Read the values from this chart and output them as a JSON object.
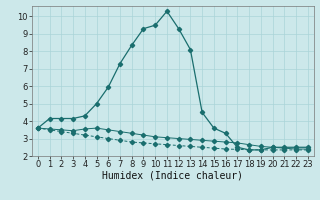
{
  "xlabel": "Humidex (Indice chaleur)",
  "ylabel": "",
  "background_color": "#cce8ea",
  "grid_color": "#aad4d8",
  "line_color": "#1a6e6e",
  "xlim": [
    -0.5,
    23.5
  ],
  "ylim": [
    2,
    10.6
  ],
  "xticks": [
    0,
    1,
    2,
    3,
    4,
    5,
    6,
    7,
    8,
    9,
    10,
    11,
    12,
    13,
    14,
    15,
    16,
    17,
    18,
    19,
    20,
    21,
    22,
    23
  ],
  "yticks": [
    2,
    3,
    4,
    5,
    6,
    7,
    8,
    9,
    10
  ],
  "line1_x": [
    0,
    1,
    2,
    3,
    4,
    5,
    6,
    7,
    8,
    9,
    10,
    11,
    12,
    13,
    14,
    15,
    16,
    17,
    18,
    19,
    20,
    21,
    22,
    23
  ],
  "line1_y": [
    3.6,
    4.15,
    4.15,
    4.15,
    4.3,
    5.0,
    5.95,
    7.3,
    8.35,
    9.3,
    9.5,
    10.3,
    9.3,
    8.1,
    4.5,
    3.6,
    3.3,
    2.5,
    2.35,
    2.35,
    2.5,
    2.5,
    2.5,
    2.5
  ],
  "line2_x": [
    0,
    1,
    2,
    3,
    4,
    5,
    6,
    7,
    8,
    9,
    10,
    11,
    12,
    13,
    14,
    15,
    16,
    17,
    18,
    19,
    20,
    21,
    22,
    23
  ],
  "line2_y": [
    3.6,
    3.5,
    3.4,
    3.3,
    3.2,
    3.1,
    3.0,
    2.9,
    2.8,
    2.75,
    2.7,
    2.65,
    2.6,
    2.55,
    2.5,
    2.45,
    2.4,
    2.38,
    2.36,
    2.35,
    2.35,
    2.35,
    2.35,
    2.35
  ],
  "line3_x": [
    0,
    1,
    2,
    3,
    4,
    5,
    6,
    7,
    8,
    9,
    10,
    11,
    12,
    13,
    14,
    15,
    16,
    17,
    18,
    19,
    20,
    21,
    22,
    23
  ],
  "line3_y": [
    3.6,
    3.55,
    3.5,
    3.45,
    3.55,
    3.6,
    3.5,
    3.4,
    3.3,
    3.2,
    3.1,
    3.05,
    3.0,
    2.95,
    2.9,
    2.85,
    2.8,
    2.75,
    2.65,
    2.55,
    2.5,
    2.45,
    2.4,
    2.4
  ],
  "xlabel_fontsize": 7,
  "tick_fontsize": 6,
  "marker": "D",
  "markersize": 2.2
}
